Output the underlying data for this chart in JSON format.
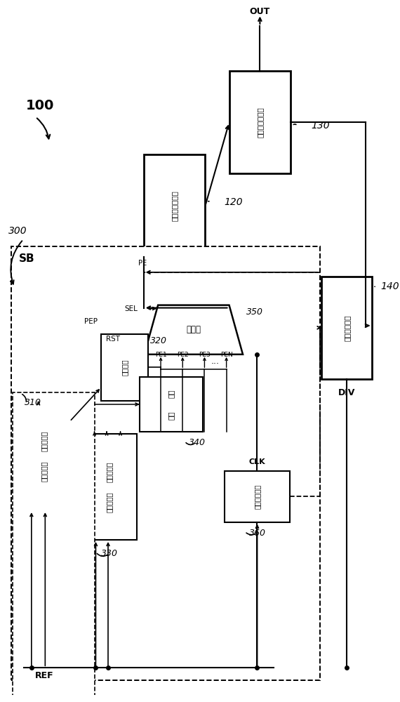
{
  "bg": "#ffffff",
  "lbl_100": "100",
  "lbl_300": "300",
  "lbl_120": "120",
  "lbl_130": "130",
  "lbl_140": "140",
  "lbl_310": "310",
  "lbl_320": "320",
  "lbl_330": "330",
  "lbl_340": "340",
  "lbl_350": "350",
  "lbl_360": "360",
  "txt_filter": "数字回路滤波器",
  "txt_osc": "数字控制振荡器",
  "txt_div": "可程序除频器",
  "txt_low1": "低分辨率相",
  "txt_low2": "差检测单元",
  "txt_hi1": "高分辨率相",
  "txt_hi2": "差检测单元",
  "txt_acc": "累加单元",
  "txt_coeff1": "系数",
  "txt_coeff2": "单元",
  "txt_switch": "除数切换单元",
  "txt_mux": "选择器",
  "txt_out": "OUT",
  "txt_ref": "REF",
  "txt_div_lbl": "DIV",
  "txt_sb": "SB",
  "txt_pep": "PEP",
  "txt_sel": "SEL",
  "txt_rst": "RST",
  "txt_pe1": "PE1",
  "txt_pe2": "PE2",
  "txt_pe3": "PE3",
  "txt_pen": "PEN",
  "txt_clk": "CLK",
  "txt_dots": "...",
  "txt_pe": "PE"
}
